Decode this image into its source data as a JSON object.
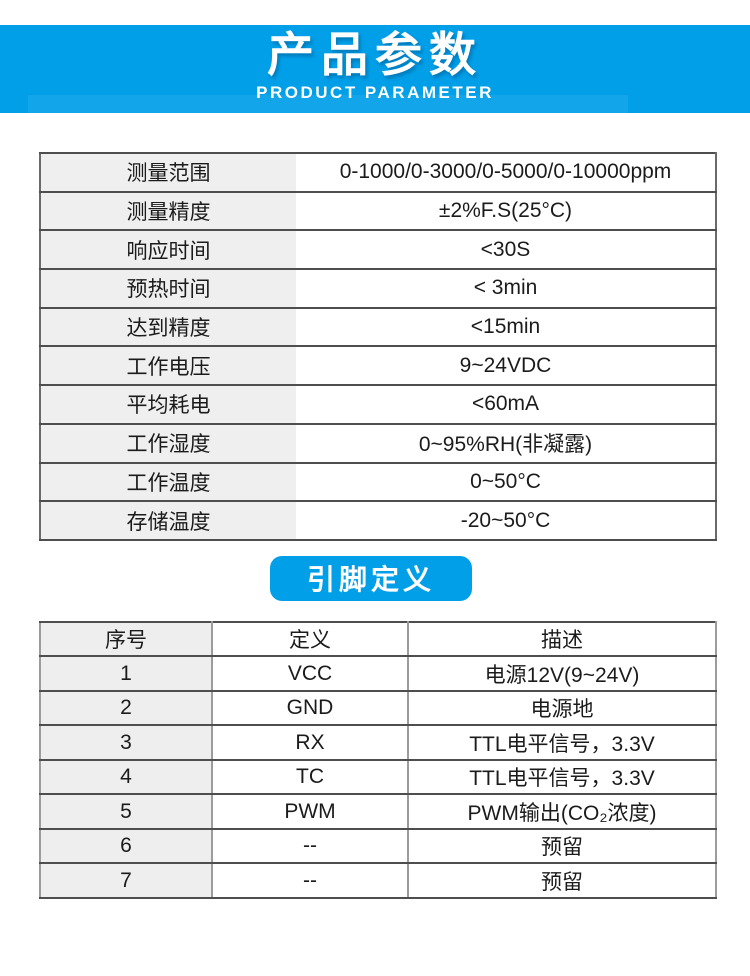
{
  "page": {
    "accent_color": "#019fe8",
    "table_header_gray": "#eeeeee"
  },
  "banner": {
    "title": "产品参数",
    "subtitle": "PRODUCT PARAMETER"
  },
  "spec_table": {
    "rows": [
      {
        "label": "测量范围",
        "value": "0-1000/0-3000/0-5000/0-10000ppm"
      },
      {
        "label": "测量精度",
        "value": "±2%F.S(25°C)"
      },
      {
        "label": "响应时间",
        "value": "<30S"
      },
      {
        "label": "预热时间",
        "value": "< 3min"
      },
      {
        "label": "达到精度",
        "value": "<15min"
      },
      {
        "label": "工作电压",
        "value": "9~24VDC"
      },
      {
        "label": "平均耗电",
        "value": "<60mA"
      },
      {
        "label": "工作湿度",
        "value": "0~95%RH(非凝露)"
      },
      {
        "label": "工作温度",
        "value": "0~50°C"
      },
      {
        "label": "存储温度",
        "value": "-20~50°C"
      }
    ]
  },
  "pin_section": {
    "badge": "引脚定义"
  },
  "pin_table": {
    "headers": [
      "序号",
      "定义",
      "描述"
    ],
    "rows": [
      [
        "1",
        "VCC",
        "电源12V(9~24V)"
      ],
      [
        "2",
        "GND",
        "电源地"
      ],
      [
        "3",
        "RX",
        "TTL电平信号，3.3V"
      ],
      [
        "4",
        "TC",
        "TTL电平信号，3.3V"
      ],
      [
        "5",
        "PWM",
        "PWM输出(CO₂浓度)"
      ],
      [
        "6",
        "--",
        "预留"
      ],
      [
        "7",
        "--",
        "预留"
      ]
    ]
  }
}
